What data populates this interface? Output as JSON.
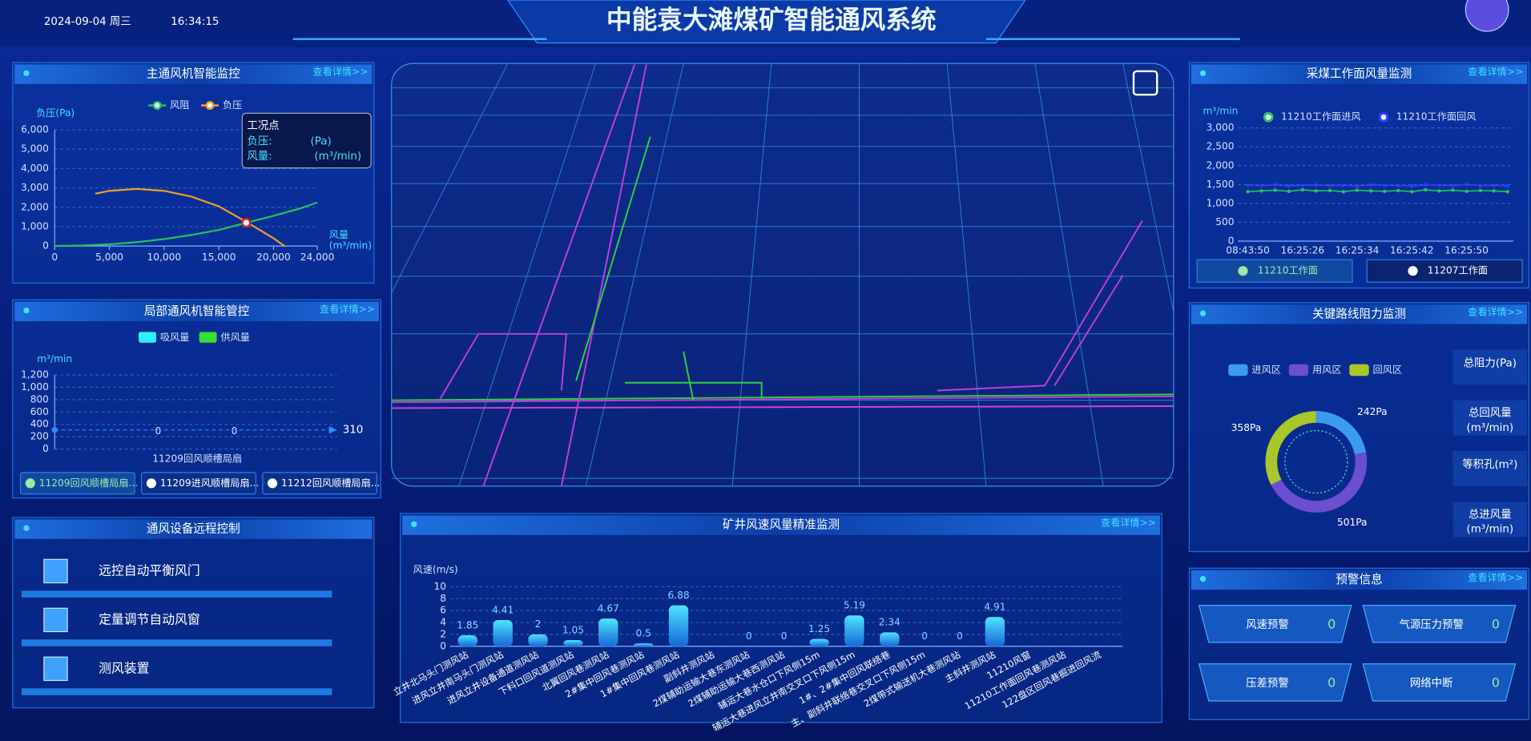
{
  "header": {
    "date": "2024-09-04 周三",
    "time": "16:34:15",
    "title": "中能袁大滩煤矿智能通风系统"
  },
  "main_fan": {
    "title": "主通风机智能监控",
    "more": "查看详情>>",
    "tooltip": {
      "title": "工况点",
      "pressure": "负压:",
      "pressure_unit": "(Pa)",
      "flow": "风量:",
      "flow_unit": "(m³/min)"
    },
    "chart": {
      "type": "line",
      "y_label": "负压(Pa)",
      "x_label": "风量",
      "x_unit": "(m³/min)",
      "xlim": [
        0,
        24000
      ],
      "xticks": [
        0,
        {
          "value": 5000,
          "label": "5,000"
        },
        {
          "value": 10000,
          "label": "10,000"
        },
        {
          "value": 15000,
          "label": "15,000"
        },
        {
          "value": 20000,
          "label": "20,000"
        },
        {
          "value": 24000,
          "label": "24,000"
        }
      ],
      "ylim": [
        0,
        6000
      ],
      "yticks": [
        0,
        {
          "value": 1000,
          "label": "1,000"
        },
        {
          "value": 2000,
          "label": "2,000"
        },
        {
          "value": 3000,
          "label": "3,000"
        },
        {
          "value": 4000,
          "label": "4,000"
        },
        {
          "value": 5000,
          "label": "5,000"
        },
        {
          "value": 6000,
          "label": "6,000"
        }
      ],
      "series": [
        {
          "name": "风阻",
          "color": "#22c55e",
          "x": [
            0,
            2500,
            5000,
            7500,
            10000,
            12500,
            15000,
            17500,
            20000,
            22500,
            24000
          ],
          "values": [
            0,
            25,
            90,
            200,
            360,
            570,
            830,
            1200,
            1560,
            1950,
            2250
          ]
        },
        {
          "name": "负压",
          "color": "#f0a020",
          "x": [
            3700,
            5000,
            7500,
            10000,
            12500,
            15000,
            17500,
            20000,
            21000
          ],
          "values": [
            2700,
            2850,
            2950,
            2850,
            2550,
            2050,
            1250,
            400,
            0
          ]
        }
      ],
      "operating_point": {
        "x": 17500,
        "value": 1200
      }
    }
  },
  "local_fan": {
    "title": "局部通风机智能管控",
    "more": "查看详情>>",
    "chart": {
      "type": "bar",
      "y_unit": "m³/min",
      "ylim": [
        0,
        1200
      ],
      "yticks": [
        0,
        200,
        400,
        600,
        800,
        {
          "value": 1000,
          "label": "1,000"
        },
        {
          "value": 1200,
          "label": "1,200"
        }
      ],
      "categories": [
        "11209回风顺槽局扇"
      ],
      "series": [
        {
          "name": "吸风量",
          "color": "#33f0ff",
          "values": [
            0
          ]
        },
        {
          "name": "供风量",
          "color": "#33e033",
          "values": [
            0
          ]
        }
      ],
      "markline": 310
    },
    "tabs": [
      "11209回风顺槽局扇...",
      "11209进风顺槽局扇...",
      "11212回风顺槽局扇..."
    ]
  },
  "controls": {
    "title": "通风设备远程控制",
    "items": [
      "远控自动平衡风门",
      "定量调节自动风窗",
      "测风装置"
    ]
  },
  "speed": {
    "title": "矿井风速风量精准监测",
    "more": "查看详情>>",
    "chart": {
      "type": "bar",
      "y_label": "风速(m/s)",
      "ylim": [
        0,
        10
      ],
      "yticks": [
        0,
        2,
        4,
        6,
        8,
        10
      ],
      "color": "#2ec5f0",
      "categories": [
        "立井北马头门测风站",
        "进风立井南马头门测风站",
        "进风立井设备通道测风站",
        "下料口回风道测风站",
        "北翼回风巷测风站",
        "2#集中回风巷测风站",
        "1#集中回风巷测风站",
        "副斜井测风站",
        "2煤辅助运输大巷东测风站",
        "2煤辅助运输大巷西测风站",
        "辅运大巷水仓口下风侧15m",
        "辅运大巷进风立井南交叉口下风侧15m",
        "1#、2#集中回风联络巷",
        "主、副斜井联络巷交叉口下风侧15m",
        "2煤带式输送机大巷测风站",
        "主斜井测风站",
        "11210风窗",
        "11210工作面回风巷测风站",
        "122盘区回风巷掘进回风流"
      ],
      "values": [
        1.85,
        4.41,
        2,
        1.05,
        4.67,
        0.5,
        6.88,
        null,
        0,
        0,
        1.25,
        5.19,
        2.34,
        0,
        0,
        4.91,
        null,
        null,
        null
      ]
    }
  },
  "face_air": {
    "title": "采煤工作面风量监测",
    "more": "查看详情>>",
    "chart": {
      "type": "line",
      "y_unit": "m³/min",
      "ylim": [
        0,
        3000
      ],
      "yticks": [
        0,
        500,
        {
          "value": 1000,
          "label": "1,000"
        },
        {
          "value": 1500,
          "label": "1,500"
        },
        {
          "value": 2000,
          "label": "2,000"
        },
        {
          "value": 2500,
          "label": "2,500"
        },
        {
          "value": 3000,
          "label": "3,000"
        }
      ],
      "categories": [
        "08:43:50",
        null,
        null,
        null,
        "16:25:26",
        null,
        null,
        null,
        "16:25:34",
        null,
        null,
        null,
        "16:25:42",
        null,
        null,
        null,
        "16:25:50",
        null,
        null,
        null
      ],
      "series": [
        {
          "name": "11210工作面进风",
          "color": "#22c55e",
          "values": [
            1310,
            1330,
            1350,
            1320,
            1360,
            1330,
            1340,
            1310,
            1350,
            1330,
            1320,
            1340,
            1310,
            1360,
            1330,
            1350,
            1320,
            1340,
            1330,
            1310
          ]
        },
        {
          "name": "11210工作面回风",
          "color": "#2a40ff",
          "values": [
            1480,
            1470,
            1490,
            1460,
            1480,
            1490,
            1470,
            1480,
            1460,
            1490,
            1480,
            1470,
            1460,
            1490,
            1480,
            1470,
            1500,
            1470,
            1480,
            1460
          ]
        }
      ]
    },
    "tabs": [
      "11210工作面",
      "11207工作面"
    ]
  },
  "resistance": {
    "title": "关键路线阻力监测",
    "more": "查看详情>>",
    "chart": {
      "type": "pie",
      "categories": [
        "进风区",
        "用风区",
        "回风区"
      ],
      "values": [
        242,
        501,
        358
      ],
      "value_labels": [
        "242Pa",
        "501Pa",
        "358Pa"
      ],
      "colors": [
        "#3a9bf0",
        "#6a4fd0",
        "#a8c82a"
      ]
    },
    "stats": [
      {
        "name": "总阻力(Pa)"
      },
      {
        "name": "总回风量",
        "unit": "(m³/min)"
      },
      {
        "name": "等积孔(m²)"
      },
      {
        "name": "总进风量",
        "unit": "(m³/min)"
      }
    ]
  },
  "warnings": {
    "title": "预警信息",
    "more": "查看详情>>",
    "items": [
      {
        "label": "风速预警",
        "value": 0
      },
      {
        "label": "气源压力预警",
        "value": 0
      },
      {
        "label": "压差预警",
        "value": 0
      },
      {
        "label": "网络中断",
        "value": 0
      }
    ]
  }
}
